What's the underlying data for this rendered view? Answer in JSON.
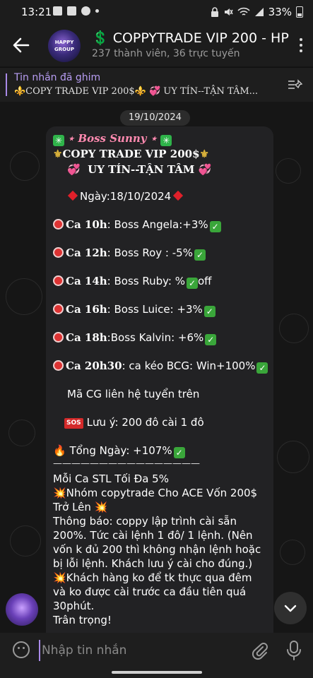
{
  "status_bar": {
    "time": "13:21",
    "battery": "33%"
  },
  "header": {
    "title": "💲 COPPYTRADE VIP 200 - HP",
    "subtitle": "237 thành viên, 36 trực tuyến",
    "avatar_text_top": "HAPPY",
    "avatar_text_bottom": "GROUP"
  },
  "pinned": {
    "label": "Tin nhắn đã ghim",
    "text": "⚜️COPY TRADE VIP 200$⚜️   💞  UY TÍN--TẬN TÂM..."
  },
  "chat": {
    "date": "19/10/2024",
    "message": {
      "sender": "Boss Sunny",
      "title": "COPY TRADE VIP 200$",
      "tagline": "UY TÍN--TẬN TÂM",
      "date_line": "Ngày:18/10/2024",
      "sessions": [
        {
          "ca": "Ca 10h",
          "text": ": Boss Angela:+3%"
        },
        {
          "ca": "Ca 12h",
          "text": ": Boss Roy : -5%"
        },
        {
          "ca": "Ca 14h",
          "text": ": Boss Ruby: %",
          "suffix": "off"
        },
        {
          "ca": "Ca 16h",
          "text": ": Boss Luice: +3%"
        },
        {
          "ca": "Ca 18h",
          "text": ":Boss Kalvin: +6%"
        },
        {
          "ca": "Ca 20h30",
          "text": ": ca kéo BCG: Win+100%"
        }
      ],
      "contact": "Mã CG liên hệ tuyển trên",
      "note_badge": "SOS",
      "note": "Lưu ý: 200 đô cài 1 đô",
      "total": "Tổng Ngày: +107%",
      "divider": "————————————————",
      "body": [
        "Mỗi Ca STL Tối Đa 5%",
        "💥Nhóm copytrade Cho ACE Vốn 200$",
        "Trở Lên 💥",
        "Thông báo: coppy lập trình cài sẵn",
        "200%. Tức cài lệnh 1 đô/ 1 lệnh. (Nên",
        "vốn k đủ 200 thì không nhận lệnh hoặc",
        "bị lỗi lệnh. Khách lưu ý cài cho đúng.)",
        "💥Khách hàng ko để tk thực qua đêm",
        "và ko được cài trước ca đầu tiên quá",
        "30phút.",
        "Trân trọng!"
      ]
    }
  },
  "composer": {
    "placeholder": "Nhập tin nhắn"
  },
  "colors": {
    "accent": "#a98ae8",
    "bubble": "#222224",
    "background": "#161616"
  }
}
